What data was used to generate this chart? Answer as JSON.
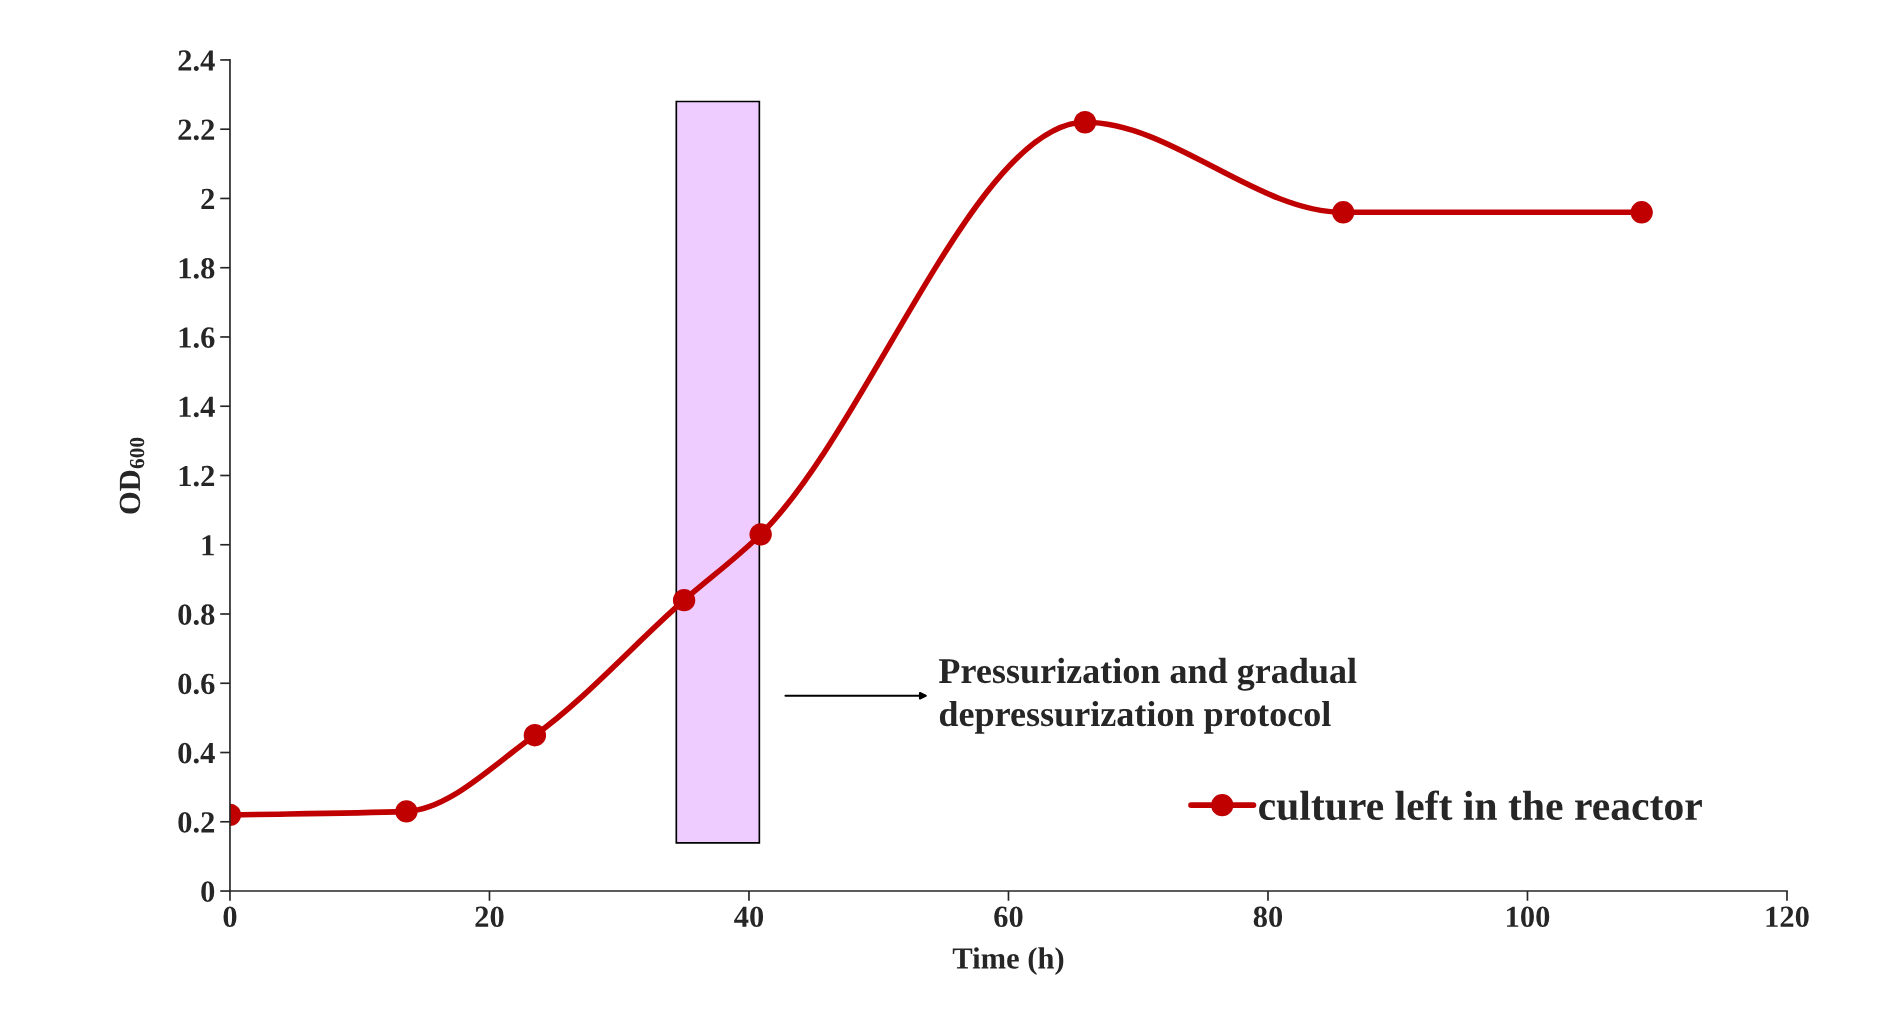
{
  "chart_data": {
    "type": "line",
    "xlabel": "Time (h)",
    "ylabel": "OD$_{600}$",
    "x": [
      0,
      13.6,
      23.5,
      35.0,
      40.9,
      65.9,
      85.8,
      108.8
    ],
    "series": [
      {
        "name": "culture left in the reactor",
        "color": "#c00000",
        "values": [
          0.22,
          0.23,
          0.45,
          0.84,
          1.03,
          2.22,
          1.96,
          1.96
        ]
      }
    ],
    "xlim": [
      0,
      120
    ],
    "xticks": [
      0,
      20,
      40,
      60,
      80,
      100,
      120
    ],
    "ylim": [
      0,
      2.4
    ],
    "yticks": [
      0,
      0.2,
      0.4,
      0.6,
      0.8,
      1,
      1.2,
      1.4,
      1.6,
      1.8,
      2,
      2.2,
      2.4
    ],
    "bands": [
      {
        "axis": "x",
        "from": 34.4,
        "to": 40.8,
        "color": "#eeccff"
      }
    ],
    "annotations": [
      "Pressurization and gradual\ndepressurization protocol"
    ],
    "marker": "circle",
    "line_style": "solid",
    "grid": false,
    "legend": "bottom right"
  }
}
